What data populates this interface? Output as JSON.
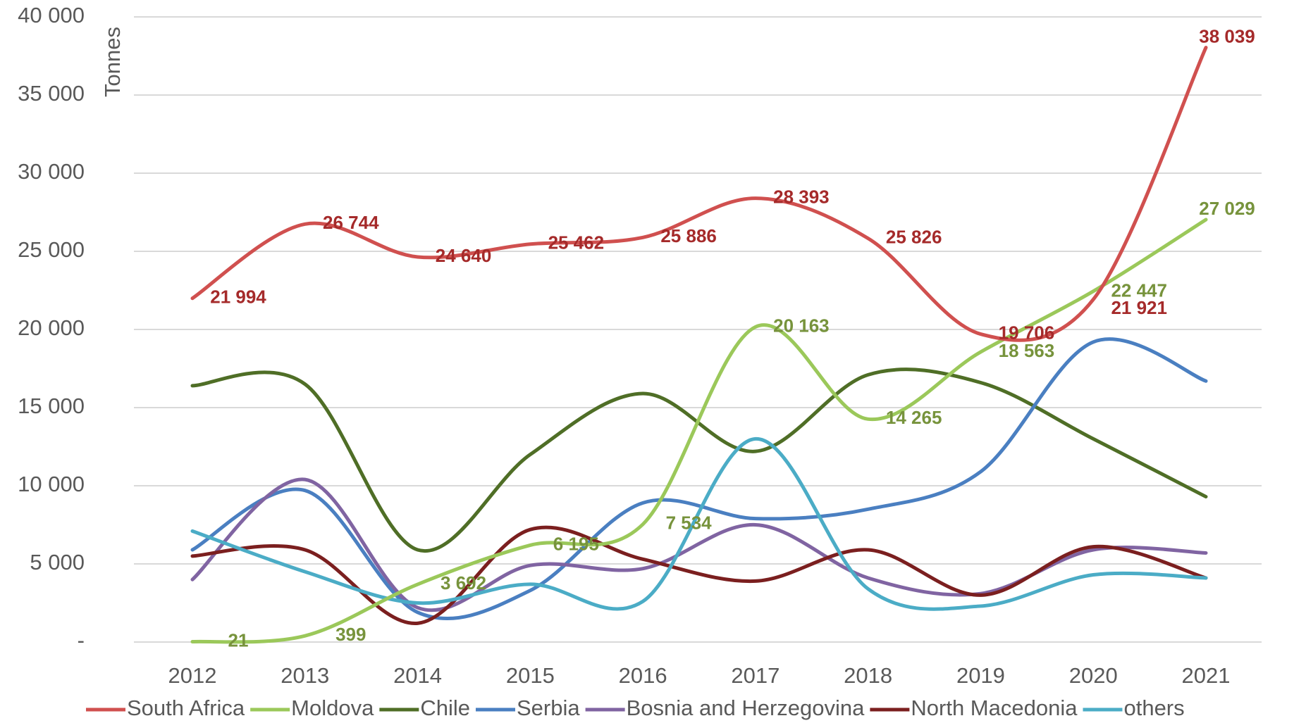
{
  "chart_data": {
    "type": "line",
    "y_label": "Tonnes",
    "categories": [
      "2012",
      "2013",
      "2014",
      "2015",
      "2016",
      "2017",
      "2018",
      "2019",
      "2020",
      "2021"
    ],
    "ylim": [
      0,
      40000
    ],
    "yticks": [
      {
        "value": 0,
        "label": "-"
      },
      {
        "value": 5000,
        "label": "5 000"
      },
      {
        "value": 10000,
        "label": "10 000"
      },
      {
        "value": 15000,
        "label": "15 000"
      },
      {
        "value": 20000,
        "label": "20 000"
      },
      {
        "value": 25000,
        "label": "25 000"
      },
      {
        "value": 30000,
        "label": "30 000"
      },
      {
        "value": 35000,
        "label": "35 000"
      },
      {
        "value": 40000,
        "label": "40 000"
      }
    ],
    "grid": true,
    "legend": "bottom",
    "series": [
      {
        "name": "South Africa",
        "color": "#d0504f",
        "label_color": "#a52a2a",
        "values": [
          21994,
          26744,
          24640,
          25462,
          25886,
          28393,
          25826,
          19706,
          21921,
          38039
        ],
        "value_labels": [
          "21 994",
          "26 744",
          "24 640",
          "25 462",
          "25 886",
          "28 393",
          "25 826",
          "19 706",
          "21 921",
          "38 039"
        ]
      },
      {
        "name": "Moldova",
        "color": "#9bc85a",
        "label_color": "#77933c",
        "values": [
          21,
          399,
          3692,
          6195,
          7534,
          20163,
          14265,
          18563,
          22447,
          27029
        ],
        "value_labels": [
          "21",
          "399",
          "3 692",
          "6 195",
          "7 534",
          "20 163",
          "14 265",
          "18 563",
          "22 447",
          "27 029"
        ]
      },
      {
        "name": "Chile",
        "color": "#4f6e26",
        "values": [
          16400,
          16500,
          5900,
          12000,
          15900,
          12200,
          17100,
          16600,
          13000,
          9300
        ]
      },
      {
        "name": "Serbia",
        "color": "#4a7fc1",
        "values": [
          5900,
          9700,
          1900,
          3300,
          8900,
          7900,
          8500,
          10900,
          19200,
          16700
        ]
      },
      {
        "name": "Bosnia and Herzegovina",
        "color": "#8064a2",
        "values": [
          4000,
          10400,
          2200,
          4900,
          4700,
          7500,
          4100,
          3100,
          5900,
          5700
        ]
      },
      {
        "name": "North Macedonia",
        "color": "#7b1f1f",
        "values": [
          5500,
          5900,
          1200,
          7200,
          5300,
          3900,
          5900,
          3000,
          6100,
          4100
        ]
      },
      {
        "name": "others",
        "color": "#4bacc6",
        "values": [
          7100,
          4500,
          2500,
          3700,
          2600,
          13000,
          3400,
          2300,
          4300,
          4100
        ]
      }
    ]
  }
}
